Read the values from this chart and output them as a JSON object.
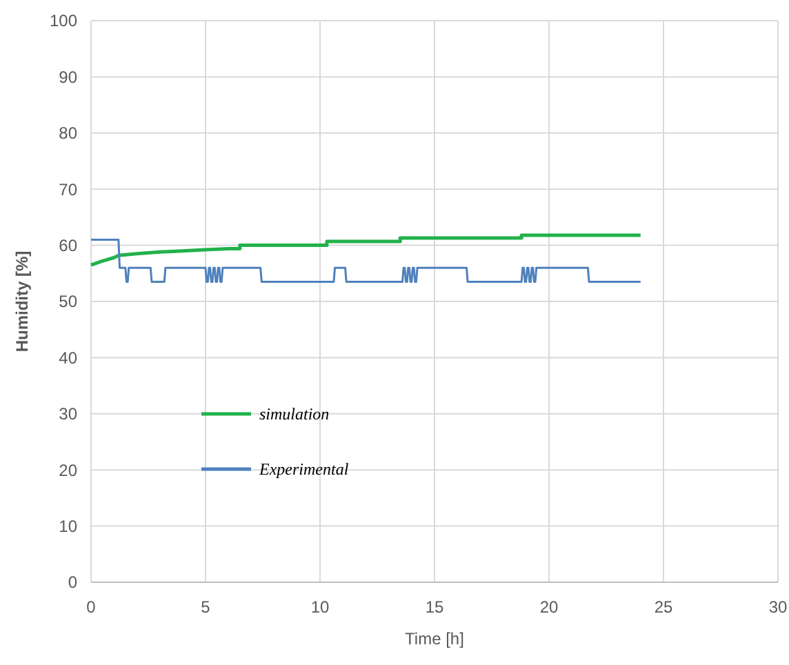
{
  "chart_data": {
    "type": "line",
    "xlabel": "Time [h]",
    "ylabel": "Humidity [%]",
    "xlim": [
      0,
      30
    ],
    "xticks": [
      0,
      5,
      10,
      15,
      20,
      25,
      30
    ],
    "ylim": [
      0,
      100
    ],
    "yticks": [
      0,
      10,
      20,
      30,
      40,
      50,
      60,
      70,
      80,
      90,
      100
    ],
    "grid": true,
    "legend": "left",
    "marker": "none",
    "line_style": "solid",
    "series": [
      {
        "name": "simulation",
        "color": "#22b14c",
        "x": [
          0,
          0.5,
          1,
          1.2,
          2,
          3,
          4,
          5,
          6,
          6.5,
          6.5,
          10.3,
          10.3,
          13.5,
          13.5,
          18.8,
          18.8,
          24
        ],
        "values": [
          56.5,
          57.2,
          57.8,
          58.2,
          58.5,
          58.8,
          59,
          59.2,
          59.4,
          59.4,
          60,
          60,
          60.7,
          60.7,
          61.3,
          61.3,
          61.8,
          61.8
        ]
      },
      {
        "name": "Experimental",
        "color": "#4f81bd",
        "x": [
          0,
          1.2,
          1.25,
          1.3,
          1.5,
          1.55,
          1.6,
          1.65,
          2.6,
          2.65,
          3.2,
          3.25,
          5,
          5.05,
          5.1,
          5.15,
          5.2,
          5.25,
          5.3,
          5.35,
          5.4,
          5.45,
          5.5,
          5.55,
          5.6,
          5.65,
          5.7,
          5.75,
          5.8,
          7.4,
          7.45,
          10.6,
          10.65,
          11.1,
          11.15,
          13.6,
          13.65,
          13.7,
          13.75,
          13.8,
          13.85,
          13.9,
          13.95,
          14,
          14.05,
          14.1,
          14.15,
          14.2,
          14.25,
          14.3,
          16.4,
          16.45,
          18.8,
          18.85,
          18.9,
          18.95,
          19,
          19.05,
          19.1,
          19.15,
          19.2,
          19.25,
          19.3,
          19.35,
          19.4,
          19.45,
          19.5,
          21.7,
          21.75,
          24
        ],
        "values": [
          61,
          61,
          56,
          56,
          56,
          53.5,
          53.5,
          56,
          56,
          53.5,
          53.5,
          56,
          56,
          53.5,
          53.5,
          56,
          56,
          53.5,
          53.5,
          56,
          56,
          53.5,
          53.5,
          56,
          56,
          53.5,
          53.5,
          56,
          56,
          56,
          53.5,
          53.5,
          56,
          56,
          53.5,
          53.5,
          56,
          56,
          53.5,
          53.5,
          56,
          56,
          53.5,
          53.5,
          56,
          56,
          53.5,
          53.5,
          56,
          56,
          56,
          53.5,
          53.5,
          56,
          56,
          53.5,
          53.5,
          56,
          56,
          53.5,
          53.5,
          56,
          56,
          53.5,
          53.5,
          56,
          56,
          56,
          53.5,
          53.5
        ]
      }
    ]
  }
}
